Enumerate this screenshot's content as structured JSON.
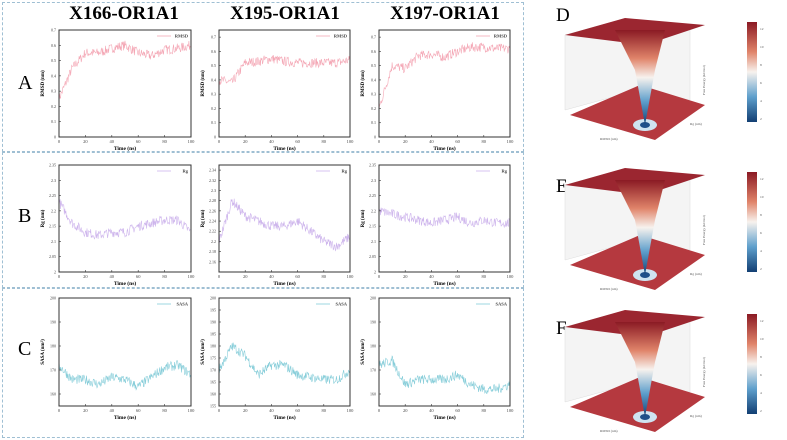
{
  "titles": [
    "X166-OR1A1",
    "X195-OR1A1",
    "X197-OR1A1"
  ],
  "row_labels": [
    "A",
    "B",
    "C"
  ],
  "panel_3d_labels": [
    "D",
    "E",
    "F"
  ],
  "xlabel": "Time (ns)",
  "colors": {
    "rmsd": "#f4a7b5",
    "rg": "#cdb4ec",
    "sasa": "#86cdd9",
    "frame": "#9fbfd3"
  },
  "chart_data": [
    {
      "type": "line",
      "row": "RMSD",
      "system": "X166-OR1A1",
      "legend": "RMSD",
      "ylabel": "RMSD (nm)",
      "xlim": [
        0,
        100
      ],
      "ylim": [
        0,
        0.7
      ],
      "yticks": [
        0,
        0.1,
        0.2,
        0.3,
        0.4,
        0.5,
        0.6,
        0.7
      ],
      "xticks": [
        0,
        20,
        40,
        60,
        80,
        100
      ],
      "x": [
        0,
        10,
        20,
        30,
        40,
        50,
        60,
        70,
        80,
        90,
        100
      ],
      "y": [
        0.25,
        0.45,
        0.55,
        0.55,
        0.58,
        0.6,
        0.55,
        0.53,
        0.57,
        0.58,
        0.6
      ]
    },
    {
      "type": "line",
      "row": "RMSD",
      "system": "X195-OR1A1",
      "legend": "RMSD",
      "ylabel": "RMSD (nm)",
      "xlim": [
        0,
        100
      ],
      "ylim": [
        0,
        0.75
      ],
      "yticks": [
        0,
        0.1,
        0.2,
        0.3,
        0.4,
        0.5,
        0.6,
        0.7
      ],
      "xticks": [
        0,
        20,
        40,
        60,
        80,
        100
      ],
      "x": [
        0,
        10,
        20,
        30,
        40,
        50,
        60,
        70,
        80,
        90,
        100
      ],
      "y": [
        0.4,
        0.38,
        0.52,
        0.53,
        0.55,
        0.53,
        0.52,
        0.52,
        0.52,
        0.52,
        0.54
      ]
    },
    {
      "type": "line",
      "row": "RMSD",
      "system": "X197-OR1A1",
      "legend": "RMSD",
      "ylabel": "RMSD (nm)",
      "xlim": [
        0,
        100
      ],
      "ylim": [
        0,
        0.75
      ],
      "yticks": [
        0,
        0.1,
        0.2,
        0.3,
        0.4,
        0.5,
        0.6,
        0.7
      ],
      "xticks": [
        0,
        20,
        40,
        60,
        80,
        100
      ],
      "x": [
        0,
        10,
        20,
        30,
        40,
        50,
        60,
        70,
        80,
        90,
        100
      ],
      "y": [
        0.2,
        0.5,
        0.48,
        0.57,
        0.58,
        0.56,
        0.6,
        0.63,
        0.63,
        0.62,
        0.62
      ]
    },
    {
      "type": "line",
      "row": "Rg",
      "system": "X166-OR1A1",
      "legend": "Rg",
      "ylabel": "Rg (nm)",
      "xlim": [
        0,
        100
      ],
      "ylim": [
        2.0,
        2.35
      ],
      "yticks": [
        2.0,
        2.05,
        2.1,
        2.15,
        2.2,
        2.25,
        2.3,
        2.35
      ],
      "xticks": [
        0,
        20,
        40,
        60,
        80,
        100
      ],
      "x": [
        0,
        10,
        20,
        30,
        40,
        50,
        60,
        70,
        80,
        90,
        100
      ],
      "y": [
        2.23,
        2.16,
        2.13,
        2.12,
        2.13,
        2.13,
        2.15,
        2.16,
        2.17,
        2.17,
        2.13
      ]
    },
    {
      "type": "line",
      "row": "Rg",
      "system": "X195-OR1A1",
      "legend": "Rg",
      "ylabel": "Rg (nm)",
      "xlim": [
        0,
        100
      ],
      "ylim": [
        2.14,
        2.35
      ],
      "yticks": [
        2.16,
        2.18,
        2.2,
        2.22,
        2.24,
        2.26,
        2.28,
        2.3,
        2.32,
        2.34
      ],
      "xticks": [
        0,
        20,
        40,
        60,
        80,
        100
      ],
      "x": [
        0,
        10,
        20,
        30,
        40,
        50,
        60,
        70,
        80,
        90,
        100
      ],
      "y": [
        2.2,
        2.28,
        2.25,
        2.24,
        2.23,
        2.23,
        2.24,
        2.22,
        2.2,
        2.19,
        2.21
      ]
    },
    {
      "type": "line",
      "row": "Rg",
      "system": "X197-OR1A1",
      "legend": "Rg",
      "ylabel": "Rg (nm)",
      "xlim": [
        0,
        100
      ],
      "ylim": [
        2.0,
        2.35
      ],
      "yticks": [
        2.0,
        2.05,
        2.1,
        2.15,
        2.2,
        2.25,
        2.3,
        2.35
      ],
      "xticks": [
        0,
        20,
        40,
        60,
        80,
        100
      ],
      "x": [
        0,
        10,
        20,
        30,
        40,
        50,
        60,
        70,
        80,
        90,
        100
      ],
      "y": [
        2.2,
        2.19,
        2.18,
        2.17,
        2.16,
        2.17,
        2.18,
        2.16,
        2.17,
        2.16,
        2.16
      ]
    },
    {
      "type": "line",
      "row": "SASA",
      "system": "X166-OR1A1",
      "legend": "SASA",
      "ylabel": "SASA (nm²)",
      "xlim": [
        0,
        100
      ],
      "ylim": [
        155,
        200
      ],
      "yticks": [
        160,
        170,
        180,
        190,
        200
      ],
      "xticks": [
        0,
        20,
        40,
        60,
        80,
        100
      ],
      "x": [
        0,
        10,
        20,
        30,
        40,
        50,
        60,
        70,
        80,
        90,
        100
      ],
      "y": [
        172,
        166,
        166,
        164,
        167,
        166,
        163,
        167,
        171,
        172,
        168
      ]
    },
    {
      "type": "line",
      "row": "SASA",
      "system": "X195-OR1A1",
      "legend": "SASA",
      "ylabel": "SASA (nm²)",
      "xlim": [
        0,
        100
      ],
      "ylim": [
        155,
        200
      ],
      "yticks": [
        155,
        160,
        165,
        170,
        175,
        180,
        185,
        190,
        195,
        200
      ],
      "xticks": [
        0,
        20,
        40,
        60,
        80,
        100
      ],
      "x": [
        0,
        10,
        20,
        30,
        40,
        50,
        60,
        70,
        80,
        90,
        100
      ],
      "y": [
        170,
        180,
        176,
        168,
        172,
        172,
        168,
        167,
        166,
        166,
        170
      ]
    },
    {
      "type": "line",
      "row": "SASA",
      "system": "X197-OR1A1",
      "legend": "SASA",
      "ylabel": "SASA (nm²)",
      "xlim": [
        0,
        100
      ],
      "ylim": [
        155,
        200
      ],
      "yticks": [
        160,
        170,
        180,
        190,
        200
      ],
      "xticks": [
        0,
        20,
        40,
        60,
        80,
        100
      ],
      "x": [
        0,
        10,
        20,
        30,
        40,
        50,
        60,
        70,
        80,
        90,
        100
      ],
      "y": [
        172,
        174,
        164,
        166,
        166,
        166,
        168,
        164,
        162,
        162,
        164
      ]
    }
  ],
  "fel": {
    "zlabel": "Free Energy (kJ/mol)",
    "xlabel": "RMSD (nm)",
    "ylabel": "Rg (nm)",
    "colorbar_ticks": [
      2,
      4,
      6,
      8,
      10,
      12
    ]
  }
}
